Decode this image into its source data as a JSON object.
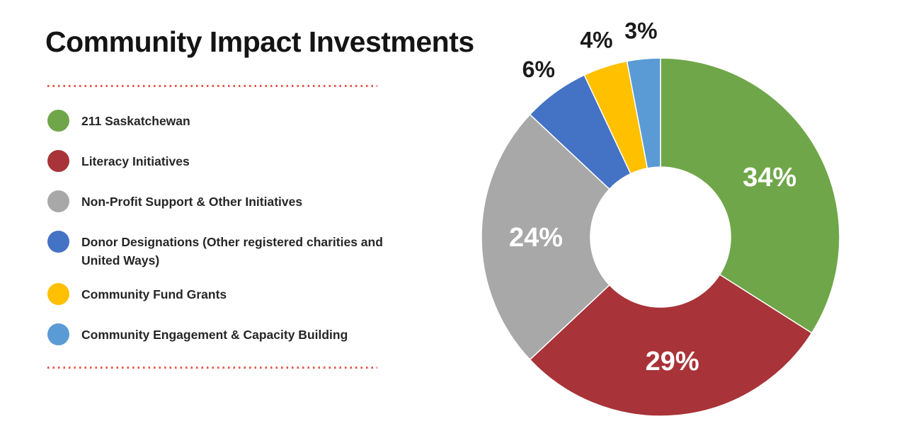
{
  "header": {
    "title": "Community Impact Investments",
    "divider_color": "#E2574B"
  },
  "chart_data": {
    "type": "pie",
    "subtype": "donut",
    "title": "Community Impact Investments",
    "unit": "percent",
    "direction": "clockwise",
    "start_angle_deg": 0,
    "inner_radius_ratio": 0.39,
    "legend_position": "left",
    "grid": false,
    "inside_label_color": "#FFFFFF",
    "outside_label_color": "#1A1A1A",
    "segments": [
      {
        "label": "211 Saskatchewan",
        "value": 34,
        "percent_label": "34%",
        "color": "#6FA64A",
        "label_placement": "inside"
      },
      {
        "label": "Literacy Initiatives",
        "value": 29,
        "percent_label": "29%",
        "color": "#A83338",
        "label_placement": "inside"
      },
      {
        "label": "Non-Profit Support & Other Initiatives",
        "value": 24,
        "percent_label": "24%",
        "color": "#A8A8A8",
        "label_placement": "inside"
      },
      {
        "label": "Donor Designations (Other registered charities and United Ways)",
        "value": 6,
        "percent_label": "6%",
        "color": "#4472C4",
        "label_placement": "outside"
      },
      {
        "label": "Community Fund Grants",
        "value": 4,
        "percent_label": "4%",
        "color": "#FFC000",
        "label_placement": "outside"
      },
      {
        "label": "Community Engagement & Capacity Building",
        "value": 3,
        "percent_label": "3%",
        "color": "#5B9BD5",
        "label_placement": "outside"
      }
    ]
  }
}
